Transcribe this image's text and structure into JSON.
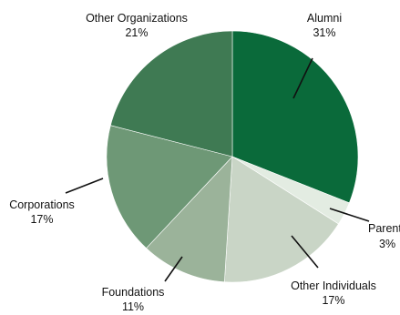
{
  "chart_data": {
    "type": "pie",
    "title": "",
    "slices": [
      {
        "name": "Alumni",
        "value": 31,
        "value_label": "31%",
        "color": "#0a6a3a"
      },
      {
        "name": "Parents",
        "value": 3,
        "value_label": "3%",
        "color": "#e3ece2"
      },
      {
        "name": "Other Individuals",
        "value": 17,
        "value_label": "17%",
        "color": "#c9d5c6"
      },
      {
        "name": "Foundations",
        "value": 11,
        "value_label": "11%",
        "color": "#9bb39a"
      },
      {
        "name": "Corporations",
        "value": 17,
        "value_label": "17%",
        "color": "#6e9876"
      },
      {
        "name": "Other Organizations",
        "value": 21,
        "value_label": "21%",
        "color": "#3f7a53"
      }
    ],
    "labels": [
      {
        "name": "Alumni",
        "value_label": "31%"
      },
      {
        "name": "Parent",
        "value_label": "3%"
      },
      {
        "name": "Other Individuals",
        "value_label": "17%"
      },
      {
        "name": "Foundations",
        "value_label": "11%"
      },
      {
        "name": "Corporations",
        "value_label": "17%"
      },
      {
        "name": "Other Organizations",
        "value_label": "21%"
      }
    ],
    "legend": "none"
  }
}
